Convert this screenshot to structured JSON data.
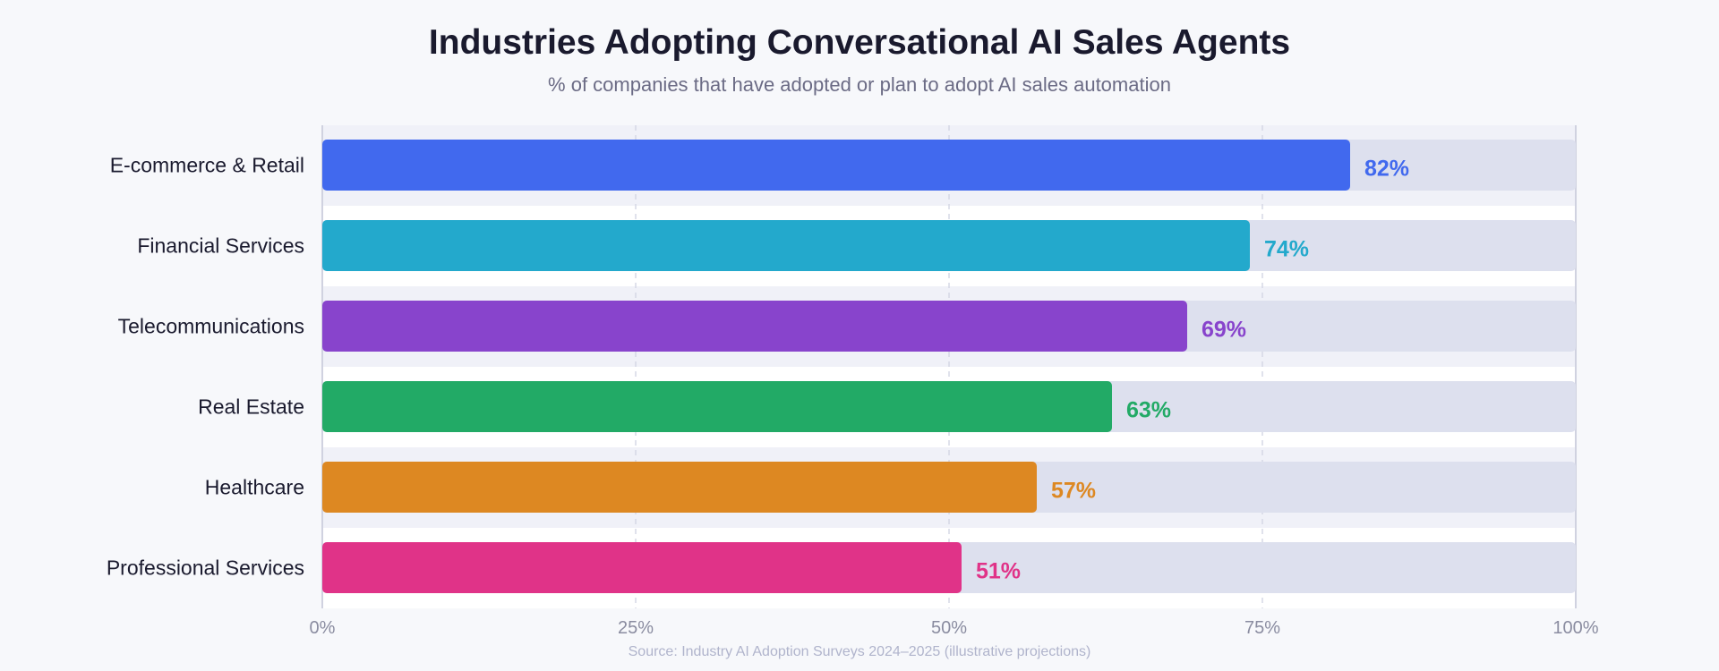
{
  "chart_data": {
    "type": "bar",
    "orientation": "horizontal",
    "title": "Industries Adopting Conversational AI Sales Agents",
    "subtitle": "% of companies that have adopted or plan to adopt AI sales automation",
    "categories": [
      "E-commerce & Retail",
      "Financial Services",
      "Telecommunications",
      "Real Estate",
      "Healthcare",
      "Professional Services"
    ],
    "values": [
      82,
      74,
      69,
      63,
      57,
      51
    ],
    "data_labels": [
      "82%",
      "74%",
      "69%",
      "63%",
      "57%",
      "51%"
    ],
    "colors": [
      "#4169ee",
      "#23a9cc",
      "#8844cc",
      "#22aa66",
      "#dd8822",
      "#e03388"
    ],
    "track_color": "#dde0ee",
    "xlim": [
      0,
      100
    ],
    "x_ticks": [
      0,
      25,
      50,
      75,
      100
    ],
    "x_tick_labels": [
      "0%",
      "25%",
      "50%",
      "75%",
      "100%"
    ],
    "grid": true,
    "xlabel": "",
    "ylabel": "",
    "source": "Source: Industry AI Adoption Surveys 2024–2025 (illustrative projections)"
  }
}
